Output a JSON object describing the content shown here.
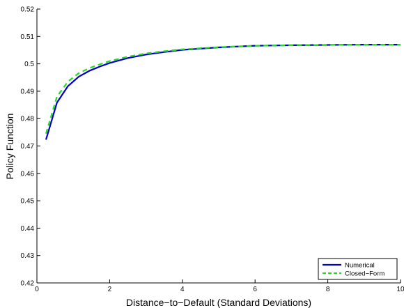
{
  "chart_data": {
    "type": "line",
    "title": "",
    "xlabel": "Distance−to−Default (Standard Deviations)",
    "ylabel": "Policy Function",
    "xlim": [
      0,
      10
    ],
    "ylim": [
      0.42,
      0.52
    ],
    "xticks": [
      0,
      2,
      4,
      6,
      8,
      10
    ],
    "xtick_labels": [
      "0",
      "2",
      "4",
      "6",
      "8",
      "10"
    ],
    "yticks": [
      0.42,
      0.43,
      0.44,
      0.45,
      0.46,
      0.47,
      0.48,
      0.49,
      0.5,
      0.51,
      0.52
    ],
    "ytick_labels": [
      "0.42",
      "0.43",
      "0.44",
      "0.45",
      "0.46",
      "0.47",
      "0.48",
      "0.49",
      "0.5",
      "0.51",
      "0.52"
    ],
    "grid": false,
    "legend_position": "bottom-right",
    "series": [
      {
        "name": "Numerical",
        "color": "#0000cc",
        "line_style": "solid",
        "x": [
          0.25,
          0.55,
          0.85,
          1.15,
          1.45,
          1.75,
          2.0,
          2.5,
          3.0,
          3.5,
          4.0,
          5.0,
          6.0,
          7.0,
          8.0,
          9.0,
          10.0
        ],
        "y": [
          0.4723,
          0.4858,
          0.4918,
          0.4953,
          0.4975,
          0.4991,
          0.5003,
          0.5021,
          0.5034,
          0.5043,
          0.5051,
          0.506,
          0.5066,
          0.5068,
          0.5069,
          0.507,
          0.507
        ]
      },
      {
        "name": "Closed−Form",
        "color": "#22dd22",
        "line_style": "dashed",
        "x": [
          0.25,
          0.55,
          0.85,
          1.15,
          1.45,
          1.75,
          2.0,
          2.5,
          3.0,
          3.5,
          4.0,
          5.0,
          6.0,
          7.0,
          8.0,
          9.0,
          10.0
        ],
        "y": [
          0.4745,
          0.488,
          0.4935,
          0.4966,
          0.4985,
          0.4999,
          0.501,
          0.5026,
          0.5038,
          0.5046,
          0.5053,
          0.5061,
          0.5066,
          0.5068,
          0.5069,
          0.507,
          0.507
        ]
      }
    ]
  }
}
